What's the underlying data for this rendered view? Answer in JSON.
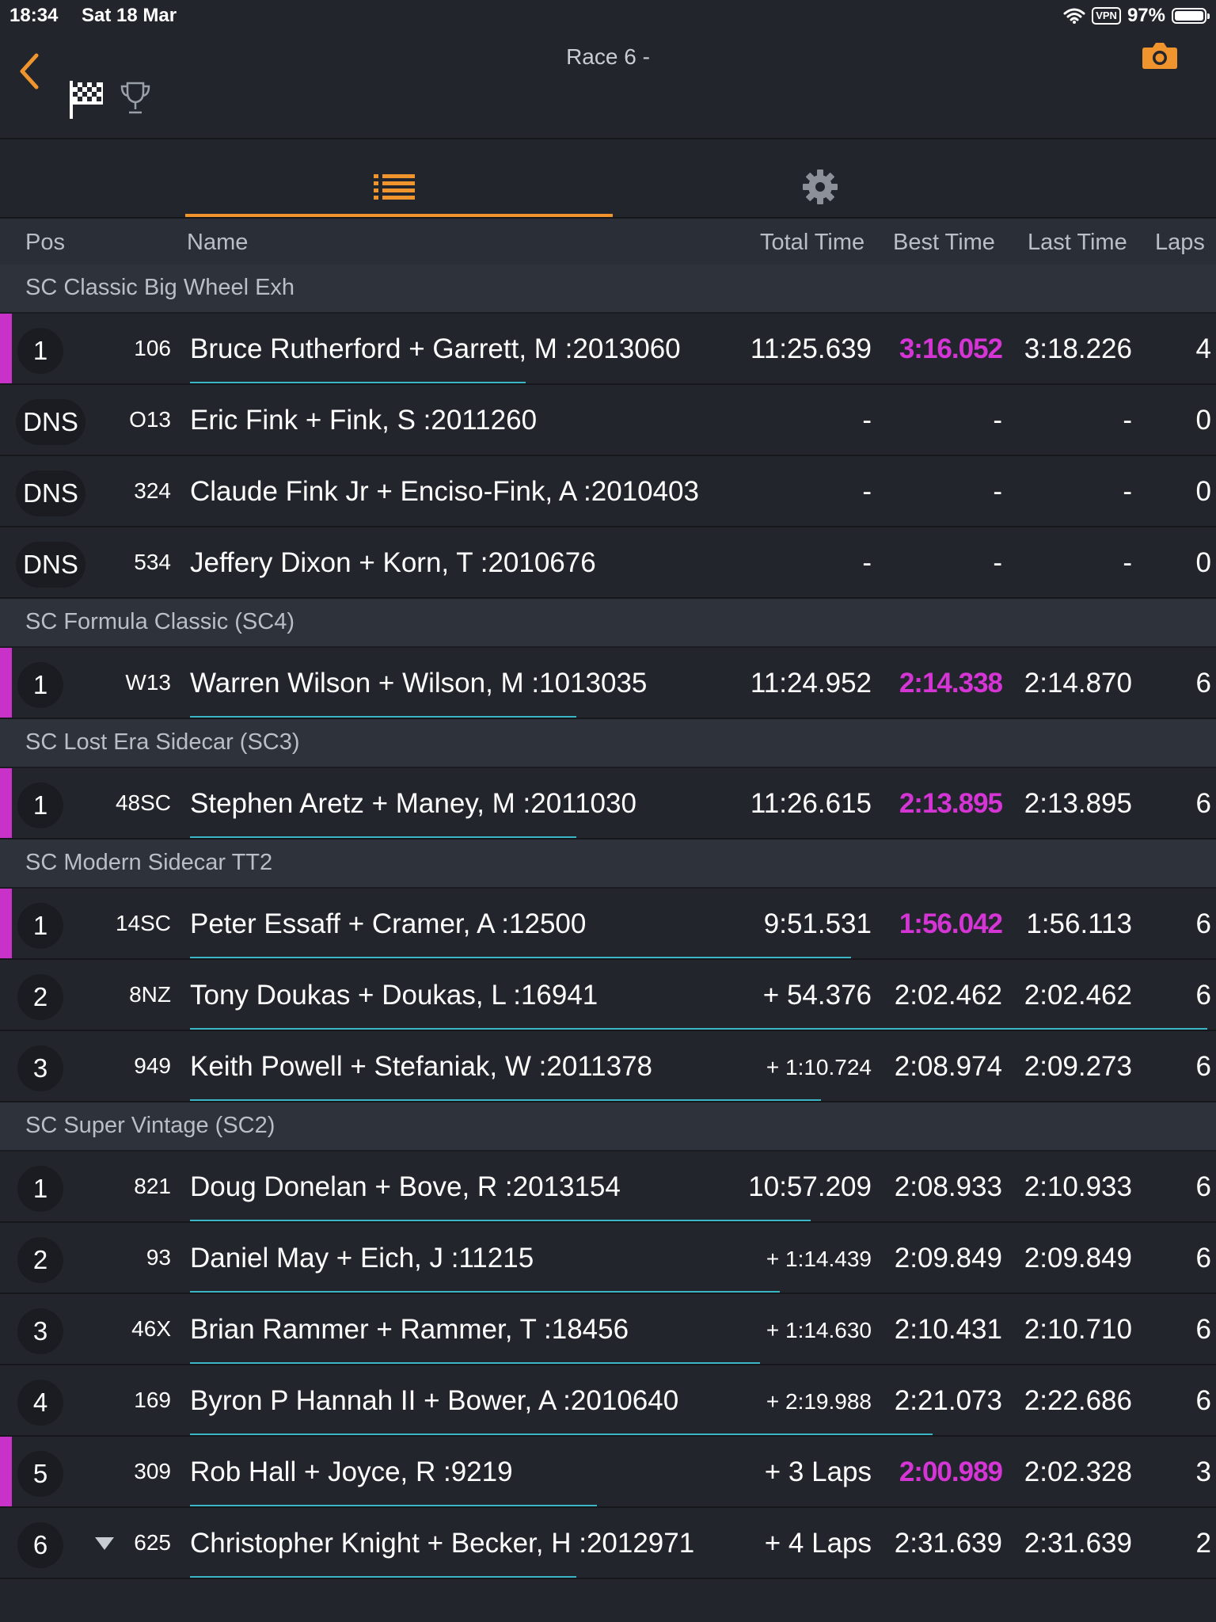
{
  "status": {
    "time": "18:34",
    "date": "Sat 18 Mar",
    "vpn": "VPN",
    "battery": "97%"
  },
  "nav": {
    "title": "Race 6 -",
    "back_icon": "chevron-left-icon",
    "flag_icon": "checkered-flag-icon",
    "trophy_icon": "trophy-icon",
    "camera_icon": "camera-icon",
    "accent": "#f0942e"
  },
  "tabs": [
    {
      "icon": "list-icon",
      "selected": true
    },
    {
      "icon": "gear-icon",
      "selected": false
    }
  ],
  "columns": {
    "pos": "Pos",
    "name": "Name",
    "total": "Total Time",
    "best": "Best Time",
    "last": "Last Time",
    "laps": "Laps"
  },
  "colors": {
    "best_highlight": "#d535d5",
    "progress": "#3bb6c7"
  },
  "groups": [
    {
      "title": "SC Classic Big Wheel Exh",
      "rows": [
        {
          "pos": "1",
          "num": "106",
          "name": "Bruce Rutherford + Garrett, M :2013060",
          "total": "11:25.639",
          "best": "3:16.052",
          "last": "3:18.226",
          "laps": "4",
          "best_hl": true,
          "progress": 0.33
        },
        {
          "pos": "DNS",
          "num": "O13",
          "name": "Eric Fink + Fink, S :2011260",
          "total": "-",
          "best": "-",
          "last": "-",
          "laps": "0",
          "progress": 0
        },
        {
          "pos": "DNS",
          "num": "324",
          "name": "Claude Fink Jr + Enciso-Fink, A :2010403",
          "total": "-",
          "best": "-",
          "last": "-",
          "laps": "0",
          "progress": 0
        },
        {
          "pos": "DNS",
          "num": "534",
          "name": "Jeffery Dixon + Korn, T :2010676",
          "total": "-",
          "best": "-",
          "last": "-",
          "laps": "0",
          "progress": 0
        }
      ]
    },
    {
      "title": "SC Formula Classic (SC4)",
      "rows": [
        {
          "pos": "1",
          "num": "W13",
          "name": "Warren Wilson + Wilson, M :1013035",
          "total": "11:24.952",
          "best": "2:14.338",
          "last": "2:14.870",
          "laps": "6",
          "best_hl": true,
          "progress": 0.38
        }
      ]
    },
    {
      "title": "SC Lost Era Sidecar (SC3)",
      "rows": [
        {
          "pos": "1",
          "num": "48SC",
          "name": "Stephen Aretz + Maney, M :2011030",
          "total": "11:26.615",
          "best": "2:13.895",
          "last": "2:13.895",
          "laps": "6",
          "best_hl": true,
          "progress": 0.38
        }
      ]
    },
    {
      "title": "SC Modern Sidecar TT2",
      "rows": [
        {
          "pos": "1",
          "num": "14SC",
          "name": "Peter Essaff + Cramer, A :12500",
          "total": "9:51.531",
          "best": "1:56.042",
          "last": "1:56.113",
          "laps": "6",
          "best_hl": true,
          "progress": 0.65
        },
        {
          "pos": "2",
          "num": "8NZ",
          "name": "Tony Doukas + Doukas, L :16941",
          "total": "+ 54.376",
          "best": "2:02.462",
          "last": "2:02.462",
          "laps": "6",
          "progress": 1.0
        },
        {
          "pos": "3",
          "num": "949",
          "name": "Keith Powell + Stefaniak, W :2011378",
          "total": "+ 1:10.724",
          "best": "2:08.974",
          "last": "2:09.273",
          "laps": "6",
          "small_total": true,
          "progress": 0.62
        }
      ]
    },
    {
      "title": "SC Super Vintage (SC2)",
      "rows": [
        {
          "pos": "1",
          "num": "821",
          "name": "Doug Donelan + Bove, R :2013154",
          "total": "10:57.209",
          "best": "2:08.933",
          "last": "2:10.933",
          "laps": "6",
          "progress": 0.61
        },
        {
          "pos": "2",
          "num": "93",
          "name": "Daniel May + Eich, J :11215",
          "total": "+ 1:14.439",
          "best": "2:09.849",
          "last": "2:09.849",
          "laps": "6",
          "small_total": true,
          "progress": 0.58
        },
        {
          "pos": "3",
          "num": "46X",
          "name": "Brian Rammer + Rammer, T :18456",
          "total": "+ 1:14.630",
          "best": "2:10.431",
          "last": "2:10.710",
          "laps": "6",
          "small_total": true,
          "progress": 0.56
        },
        {
          "pos": "4",
          "num": "169",
          "name": "Byron P Hannah II + Bower, A :2010640",
          "total": "+ 2:19.988",
          "best": "2:21.073",
          "last": "2:22.686",
          "laps": "6",
          "small_total": true,
          "progress": 0.73
        },
        {
          "pos": "5",
          "num": "309",
          "name": "Rob Hall + Joyce, R :9219",
          "total": "+ 3 Laps",
          "best": "2:00.989",
          "last": "2:02.328",
          "laps": "3",
          "best_hl": true,
          "progress": 0.4
        },
        {
          "pos": "6",
          "num": "625",
          "name": "Christopher Knight + Becker, H :2012971",
          "total": "+ 4 Laps",
          "best": "2:31.639",
          "last": "2:31.639",
          "laps": "2",
          "down": true,
          "progress": 0.38
        }
      ]
    }
  ]
}
